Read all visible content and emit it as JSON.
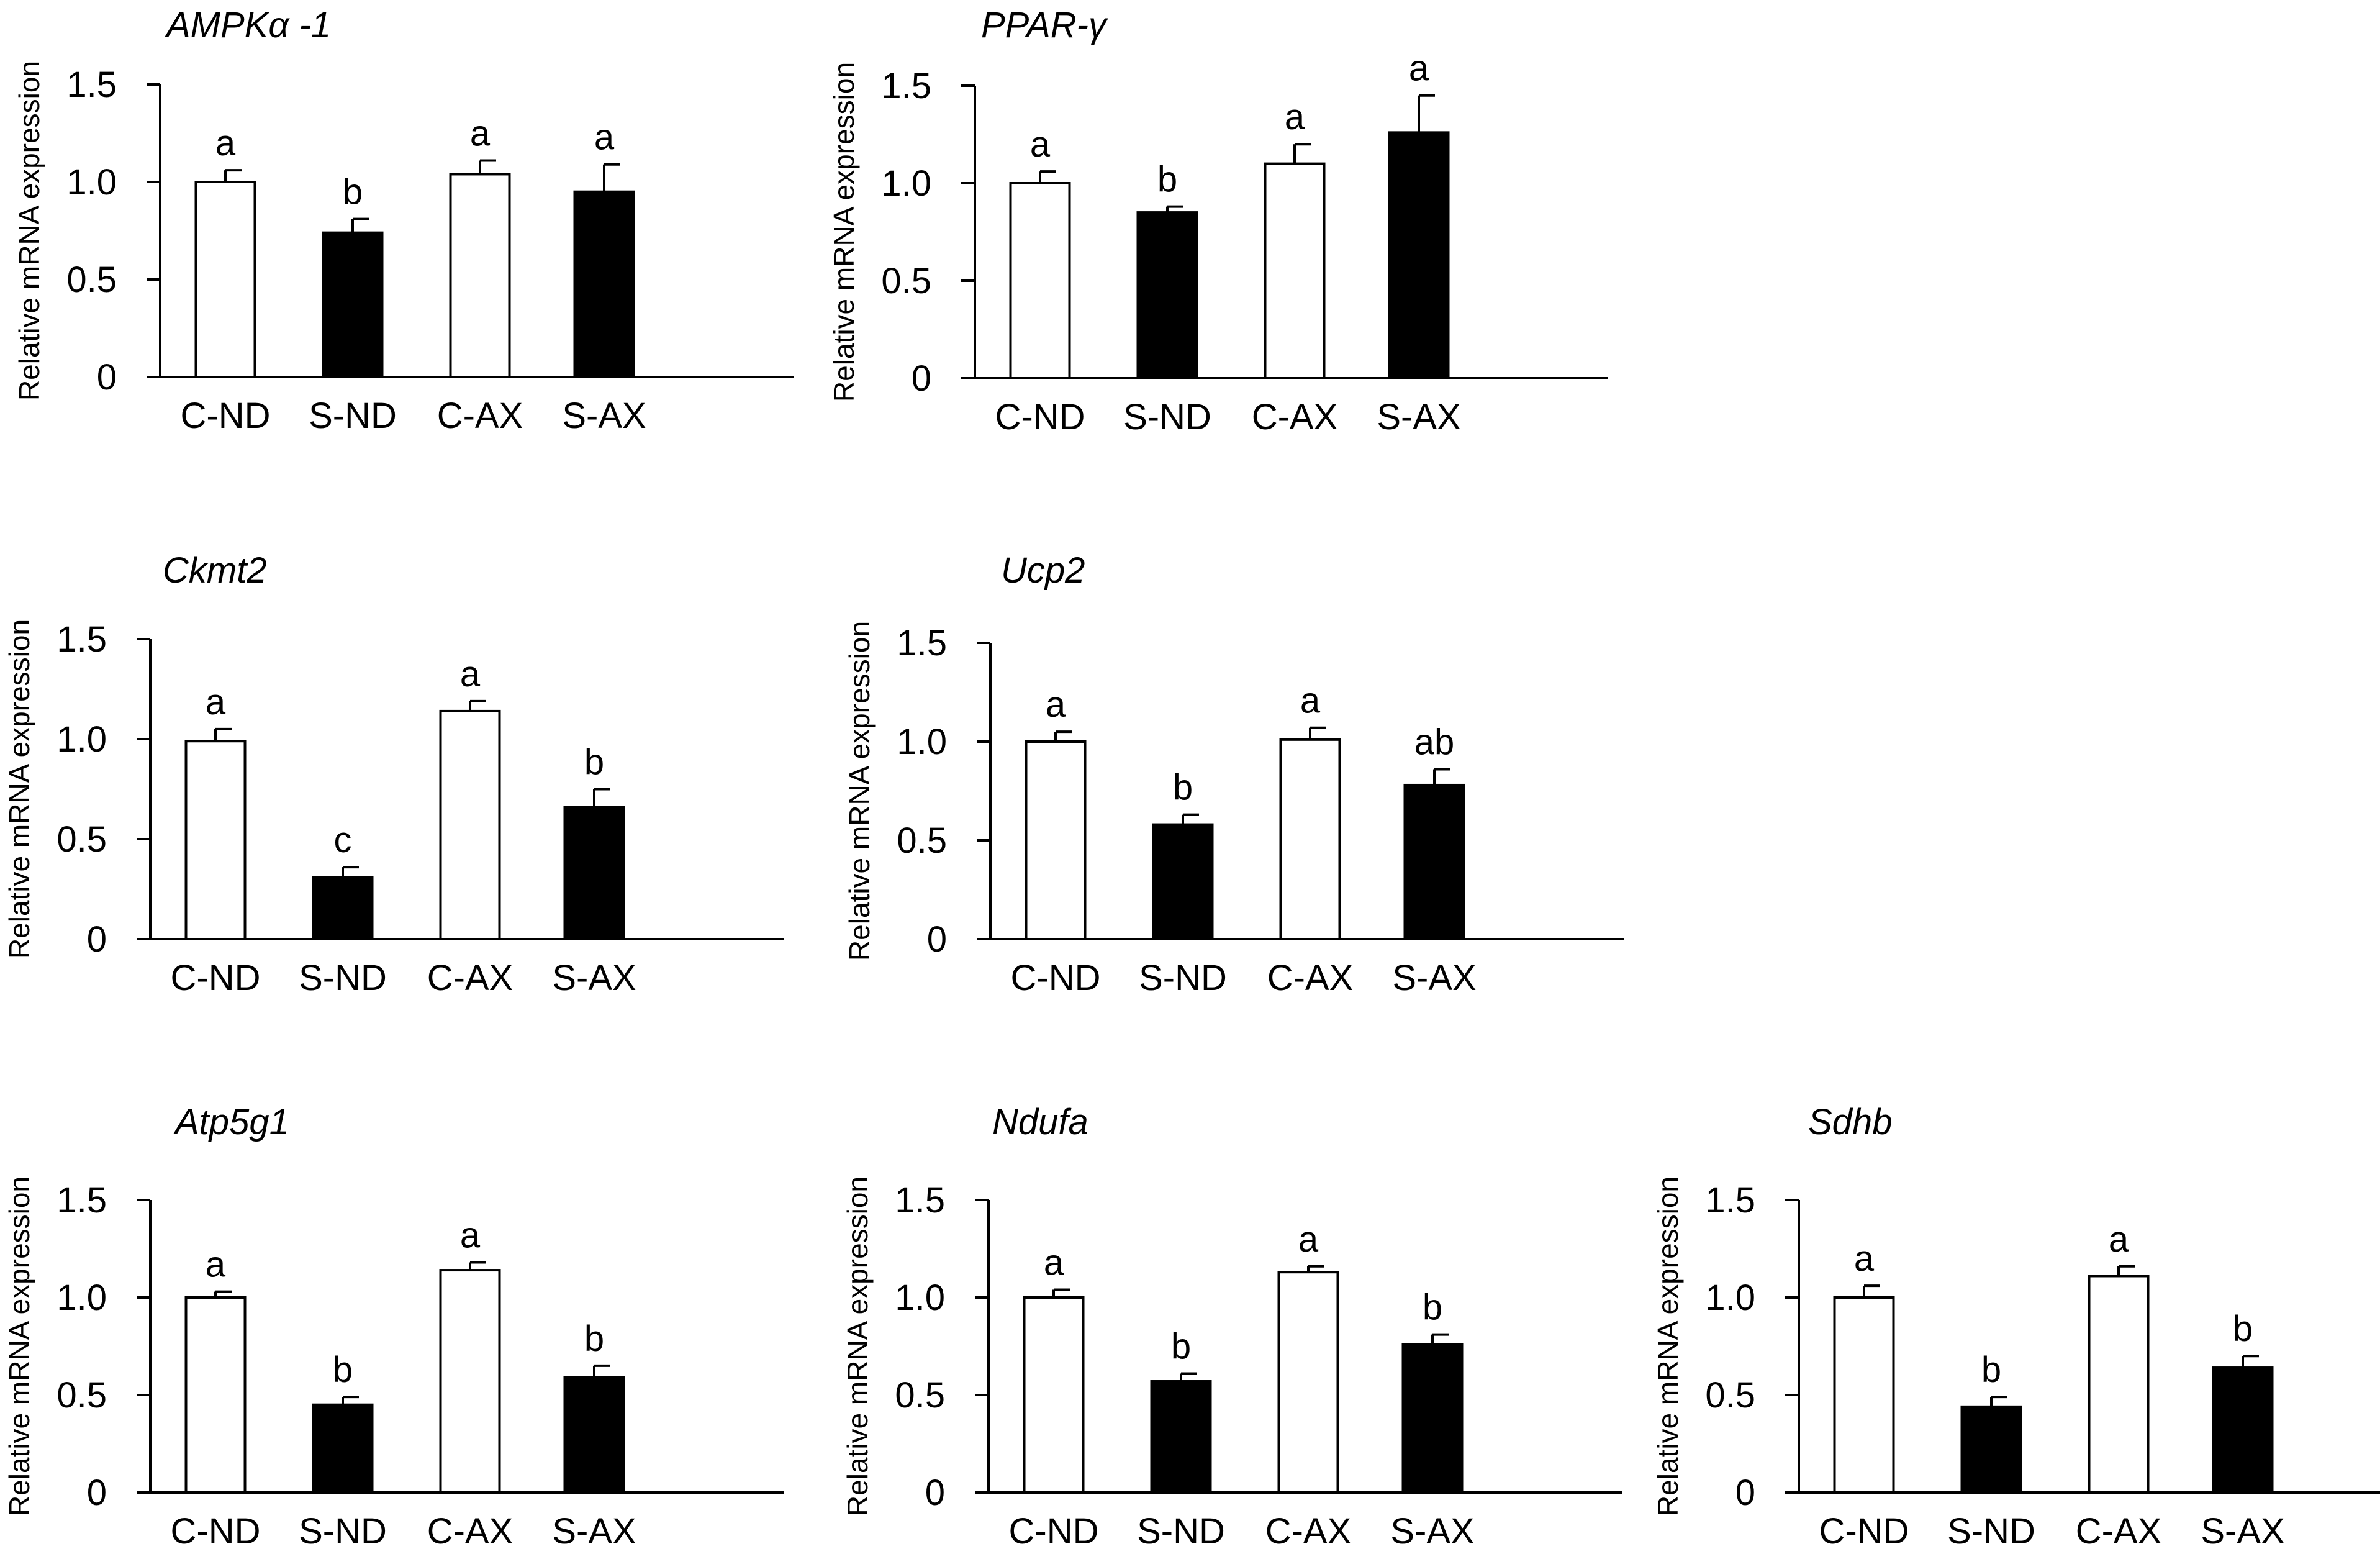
{
  "chart_data": [
    {
      "type": "bar",
      "title": "AMPKα -1",
      "ylabel": "Relative mRNA expression",
      "xlabel": "",
      "ylim": [
        0,
        1.5
      ],
      "yticks": [
        "0",
        "0.5",
        "1.0",
        "1.5"
      ],
      "categories": [
        "C-ND",
        "S-ND",
        "C-AX",
        "S-AX"
      ],
      "values": [
        1.0,
        0.74,
        1.04,
        0.95
      ],
      "errors": [
        0.06,
        0.07,
        0.07,
        0.14
      ],
      "significance": [
        "a",
        "b",
        "a",
        "a"
      ],
      "fills": [
        "white",
        "black",
        "white",
        "black"
      ]
    },
    {
      "type": "bar",
      "title": "PPAR-γ",
      "ylabel": "Relative mRNA expression",
      "xlabel": "",
      "ylim": [
        0,
        1.5
      ],
      "yticks": [
        "0",
        "0.5",
        "1.0",
        "1.5"
      ],
      "categories": [
        "C-ND",
        "S-ND",
        "C-AX",
        "S-AX"
      ],
      "values": [
        1.0,
        0.85,
        1.1,
        1.26
      ],
      "errors": [
        0.06,
        0.03,
        0.1,
        0.19
      ],
      "significance": [
        "a",
        "b",
        "a",
        "a"
      ],
      "fills": [
        "white",
        "black",
        "white",
        "black"
      ]
    },
    {
      "type": "bar",
      "title": "Ckmt2",
      "ylabel": "Relative mRNA expression",
      "xlabel": "",
      "ylim": [
        0,
        1.5
      ],
      "yticks": [
        "0",
        "0.5",
        "1.0",
        "1.5"
      ],
      "categories": [
        "C-ND",
        "S-ND",
        "C-AX",
        "S-AX"
      ],
      "values": [
        0.99,
        0.31,
        1.14,
        0.66
      ],
      "errors": [
        0.06,
        0.05,
        0.05,
        0.09
      ],
      "significance": [
        "a",
        "c",
        "a",
        "b"
      ],
      "fills": [
        "white",
        "black",
        "white",
        "black"
      ]
    },
    {
      "type": "bar",
      "title": "Ucp2",
      "ylabel": "Relative mRNA expression",
      "xlabel": "",
      "ylim": [
        0,
        1.5
      ],
      "yticks": [
        "0",
        "0.5",
        "1.0",
        "1.5"
      ],
      "categories": [
        "C-ND",
        "S-ND",
        "C-AX",
        "S-AX"
      ],
      "values": [
        1.0,
        0.58,
        1.01,
        0.78
      ],
      "errors": [
        0.05,
        0.05,
        0.06,
        0.08
      ],
      "significance": [
        "a",
        "b",
        "a",
        "ab"
      ],
      "fills": [
        "white",
        "black",
        "white",
        "black"
      ]
    },
    {
      "type": "bar",
      "title": "Atp5g1",
      "ylabel": "Relative mRNA expression",
      "xlabel": "",
      "ylim": [
        0,
        1.5
      ],
      "yticks": [
        "0",
        "0.5",
        "1.0",
        "1.5"
      ],
      "categories": [
        "C-ND",
        "S-ND",
        "C-AX",
        "S-AX"
      ],
      "values": [
        1.0,
        0.45,
        1.14,
        0.59
      ],
      "errors": [
        0.03,
        0.04,
        0.04,
        0.06
      ],
      "significance": [
        "a",
        "b",
        "a",
        "b"
      ],
      "fills": [
        "white",
        "black",
        "white",
        "black"
      ]
    },
    {
      "type": "bar",
      "title": "Ndufa",
      "ylabel": "Relative mRNA expression",
      "xlabel": "",
      "ylim": [
        0,
        1.5
      ],
      "yticks": [
        "0",
        "0.5",
        "1.0",
        "1.5"
      ],
      "categories": [
        "C-ND",
        "S-ND",
        "C-AX",
        "S-AX"
      ],
      "values": [
        1.0,
        0.57,
        1.13,
        0.76
      ],
      "errors": [
        0.04,
        0.04,
        0.03,
        0.05
      ],
      "significance": [
        "a",
        "b",
        "a",
        "b"
      ],
      "fills": [
        "white",
        "black",
        "white",
        "black"
      ]
    },
    {
      "type": "bar",
      "title": "Sdhb",
      "ylabel": "Relative mRNA expression",
      "xlabel": "",
      "ylim": [
        0,
        1.5
      ],
      "yticks": [
        "0",
        "0.5",
        "1.0",
        "1.5"
      ],
      "categories": [
        "C-ND",
        "S-ND",
        "C-AX",
        "S-AX"
      ],
      "values": [
        1.0,
        0.44,
        1.11,
        0.64
      ],
      "errors": [
        0.06,
        0.05,
        0.05,
        0.06
      ],
      "significance": [
        "a",
        "b",
        "a",
        "b"
      ],
      "fills": [
        "white",
        "black",
        "white",
        "black"
      ]
    }
  ]
}
